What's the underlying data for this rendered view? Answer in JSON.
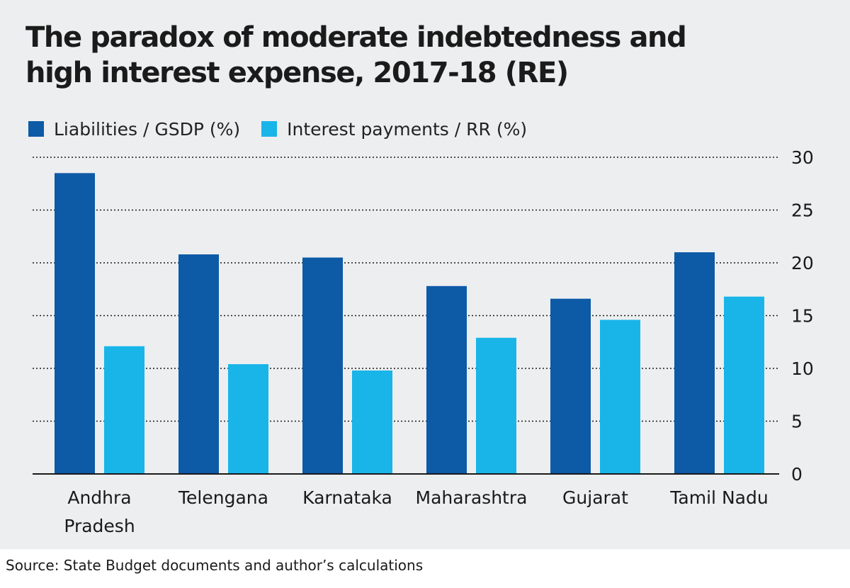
{
  "title_line1": "The paradox of moderate indebtedness and",
  "title_line2": "high interest expense, 2017-18 (RE)",
  "source": "Source: State Budget documents and author’s calculations",
  "colors": {
    "panel": "#edeef0",
    "liabilities": "#0d5aa7",
    "interest": "#19b5e9",
    "grid": "#1a1a1a"
  },
  "chart_data": {
    "type": "bar",
    "title": "The paradox of moderate indebtedness and high interest expense, 2017-18 (RE)",
    "categories": [
      [
        "Andhra",
        "Pradesh"
      ],
      [
        "Telengana"
      ],
      [
        "Karnataka"
      ],
      [
        "Maharashtra"
      ],
      [
        "Gujarat"
      ],
      [
        "Tamil Nadu"
      ]
    ],
    "series": [
      {
        "name": "Liabilities / GSDP (%)",
        "values": [
          28.5,
          20.8,
          20.5,
          17.8,
          16.6,
          21.0
        ]
      },
      {
        "name": "Interest payments / RR (%)",
        "values": [
          12.1,
          10.4,
          9.8,
          12.9,
          14.6,
          16.8
        ]
      }
    ],
    "yticks": [
      0,
      5,
      10,
      15,
      20,
      25,
      30
    ],
    "ylim": [
      0,
      30
    ],
    "xlabel": "",
    "ylabel": "",
    "grid": "dotted horizontal",
    "yaxis_side": "right",
    "legend_position": "top-left"
  }
}
